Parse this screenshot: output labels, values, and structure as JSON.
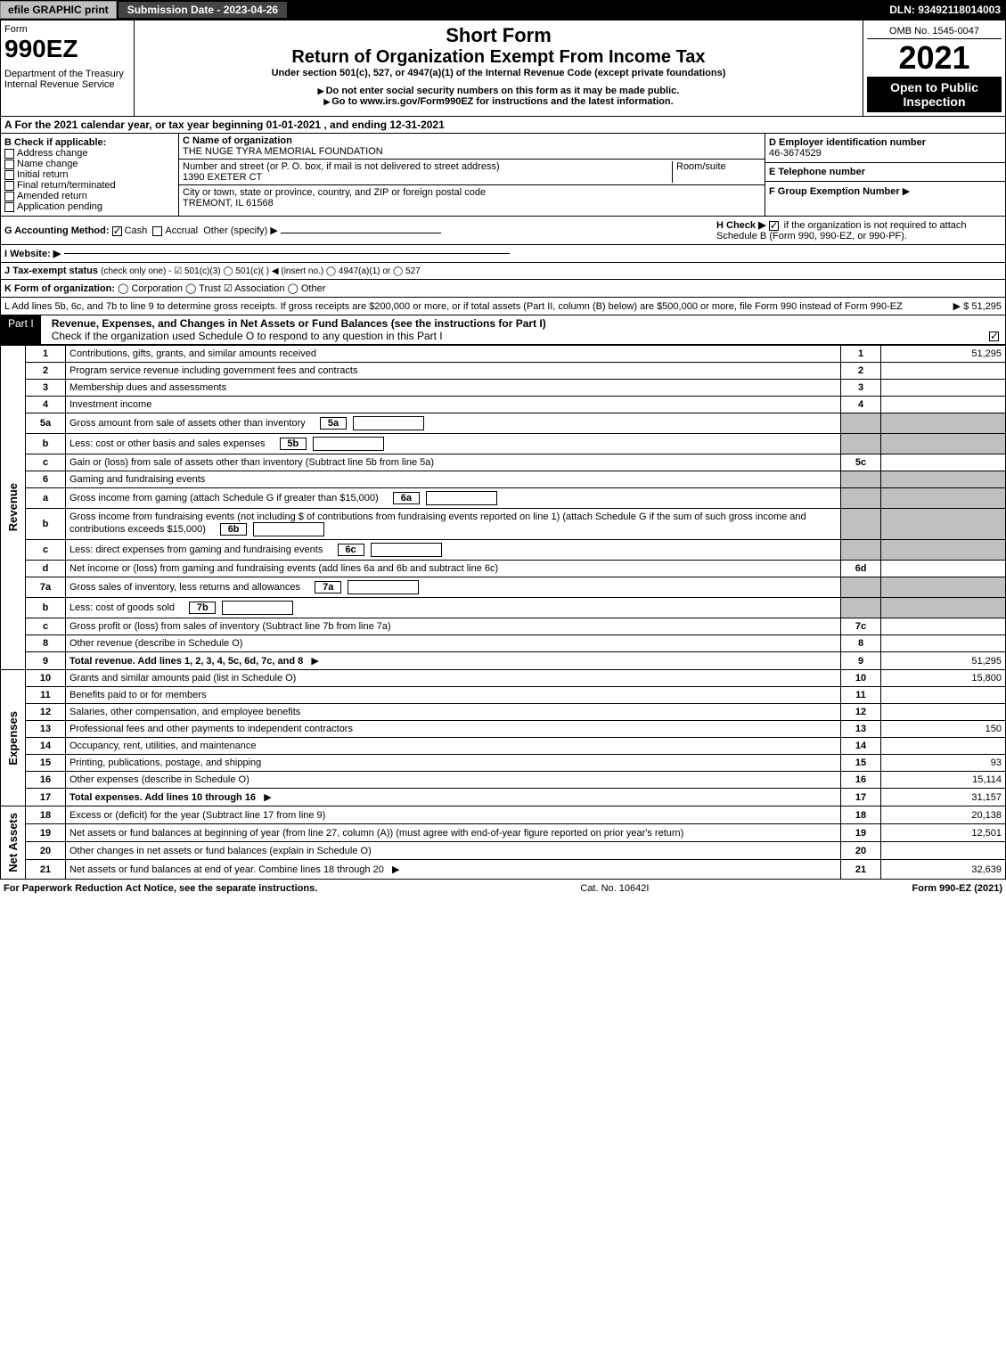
{
  "topbar": {
    "efile": "efile GRAPHIC print",
    "submission": "Submission Date - 2023-04-26",
    "dln": "DLN: 93492118014003"
  },
  "header": {
    "form_word": "Form",
    "form_number": "990EZ",
    "dept": "Department of the Treasury\nInternal Revenue Service",
    "title1": "Short Form",
    "title2": "Return of Organization Exempt From Income Tax",
    "under": "Under section 501(c), 527, or 4947(a)(1) of the Internal Revenue Code (except private foundations)",
    "no_ssn": "Do not enter social security numbers on this form as it may be made public.",
    "goto": "Go to www.irs.gov/Form990EZ for instructions and the latest information.",
    "omb": "OMB No. 1545-0047",
    "year": "2021",
    "open": "Open to Public Inspection"
  },
  "section_a": "A  For the 2021 calendar year, or tax year beginning 01-01-2021 , and ending 12-31-2021",
  "b": {
    "label": "B  Check if applicable:",
    "opts": [
      "Address change",
      "Name change",
      "Initial return",
      "Final return/terminated",
      "Amended return",
      "Application pending"
    ]
  },
  "c": {
    "name_label": "C Name of organization",
    "name": "THE NUGE TYRA MEMORIAL FOUNDATION",
    "street_label": "Number and street (or P. O. box, if mail is not delivered to street address)",
    "room_label": "Room/suite",
    "street": "1390 EXETER CT",
    "city_label": "City or town, state or province, country, and ZIP or foreign postal code",
    "city": "TREMONT, IL  61568"
  },
  "d": {
    "label": "D Employer identification number",
    "value": "46-3674529"
  },
  "e": {
    "label": "E Telephone number",
    "value": ""
  },
  "f": {
    "label": "F Group Exemption Number",
    "arrow": "▶"
  },
  "g": {
    "label": "G Accounting Method:",
    "cash": "Cash",
    "accrual": "Accrual",
    "other": "Other (specify) ▶"
  },
  "h": {
    "label": "H  Check ▶",
    "text": "if the organization is not required to attach Schedule B (Form 990, 990-EZ, or 990-PF)."
  },
  "i": {
    "label": "I Website: ▶",
    "value": ""
  },
  "j": {
    "label": "J Tax-exempt status",
    "rest": "(check only one) -  ☑ 501(c)(3)  ◯ 501(c)(   ) ◀ (insert no.)  ◯ 4947(a)(1) or  ◯ 527"
  },
  "k": {
    "label": "K Form of organization:",
    "opts": "◯ Corporation   ◯ Trust   ☑ Association   ◯ Other"
  },
  "l": {
    "text": "L Add lines 5b, 6c, and 7b to line 9 to determine gross receipts. If gross receipts are $200,000 or more, or if total assets (Part II, column (B) below) are $500,000 or more, file Form 990 instead of Form 990-EZ",
    "value": "▶ $ 51,295"
  },
  "part1": {
    "label": "Part I",
    "title": "Revenue, Expenses, and Changes in Net Assets or Fund Balances (see the instructions for Part I)",
    "check": "Check if the organization used Schedule O to respond to any question in this Part I"
  },
  "sections": {
    "revenue": "Revenue",
    "expenses": "Expenses",
    "netassets": "Net Assets"
  },
  "lines": [
    {
      "n": "1",
      "d": "Contributions, gifts, grants, and similar amounts received",
      "r": "1",
      "v": "51,295"
    },
    {
      "n": "2",
      "d": "Program service revenue including government fees and contracts",
      "r": "2",
      "v": ""
    },
    {
      "n": "3",
      "d": "Membership dues and assessments",
      "r": "3",
      "v": ""
    },
    {
      "n": "4",
      "d": "Investment income",
      "r": "4",
      "v": ""
    },
    {
      "n": "5a",
      "d": "Gross amount from sale of assets other than inventory",
      "sub": "5a",
      "shade": true
    },
    {
      "n": "b",
      "d": "Less: cost or other basis and sales expenses",
      "sub": "5b",
      "shade": true
    },
    {
      "n": "c",
      "d": "Gain or (loss) from sale of assets other than inventory (Subtract line 5b from line 5a)",
      "r": "5c",
      "v": ""
    },
    {
      "n": "6",
      "d": "Gaming and fundraising events",
      "shade": true,
      "noref": true
    },
    {
      "n": "a",
      "d": "Gross income from gaming (attach Schedule G if greater than $15,000)",
      "sub": "6a",
      "shade": true
    },
    {
      "n": "b",
      "d": "Gross income from fundraising events (not including $                    of contributions from fundraising events reported on line 1) (attach Schedule G if the sum of such gross income and contributions exceeds $15,000)",
      "sub": "6b",
      "shade": true
    },
    {
      "n": "c",
      "d": "Less: direct expenses from gaming and fundraising events",
      "sub": "6c",
      "shade": true
    },
    {
      "n": "d",
      "d": "Net income or (loss) from gaming and fundraising events (add lines 6a and 6b and subtract line 6c)",
      "r": "6d",
      "v": ""
    },
    {
      "n": "7a",
      "d": "Gross sales of inventory, less returns and allowances",
      "sub": "7a",
      "shade": true
    },
    {
      "n": "b",
      "d": "Less: cost of goods sold",
      "sub": "7b",
      "shade": true
    },
    {
      "n": "c",
      "d": "Gross profit or (loss) from sales of inventory (Subtract line 7b from line 7a)",
      "r": "7c",
      "v": ""
    },
    {
      "n": "8",
      "d": "Other revenue (describe in Schedule O)",
      "r": "8",
      "v": ""
    },
    {
      "n": "9",
      "d": "Total revenue. Add lines 1, 2, 3, 4, 5c, 6d, 7c, and 8",
      "r": "9",
      "v": "51,295",
      "bold": true,
      "arrow": true
    }
  ],
  "exp_lines": [
    {
      "n": "10",
      "d": "Grants and similar amounts paid (list in Schedule O)",
      "r": "10",
      "v": "15,800"
    },
    {
      "n": "11",
      "d": "Benefits paid to or for members",
      "r": "11",
      "v": ""
    },
    {
      "n": "12",
      "d": "Salaries, other compensation, and employee benefits",
      "r": "12",
      "v": ""
    },
    {
      "n": "13",
      "d": "Professional fees and other payments to independent contractors",
      "r": "13",
      "v": "150"
    },
    {
      "n": "14",
      "d": "Occupancy, rent, utilities, and maintenance",
      "r": "14",
      "v": ""
    },
    {
      "n": "15",
      "d": "Printing, publications, postage, and shipping",
      "r": "15",
      "v": "93"
    },
    {
      "n": "16",
      "d": "Other expenses (describe in Schedule O)",
      "r": "16",
      "v": "15,114"
    },
    {
      "n": "17",
      "d": "Total expenses. Add lines 10 through 16",
      "r": "17",
      "v": "31,157",
      "bold": true,
      "arrow": true
    }
  ],
  "na_lines": [
    {
      "n": "18",
      "d": "Excess or (deficit) for the year (Subtract line 17 from line 9)",
      "r": "18",
      "v": "20,138"
    },
    {
      "n": "19",
      "d": "Net assets or fund balances at beginning of year (from line 27, column (A)) (must agree with end-of-year figure reported on prior year's return)",
      "r": "19",
      "v": "12,501"
    },
    {
      "n": "20",
      "d": "Other changes in net assets or fund balances (explain in Schedule O)",
      "r": "20",
      "v": ""
    },
    {
      "n": "21",
      "d": "Net assets or fund balances at end of year. Combine lines 18 through 20",
      "r": "21",
      "v": "32,639",
      "arrow": true
    }
  ],
  "footer": {
    "left": "For Paperwork Reduction Act Notice, see the separate instructions.",
    "mid": "Cat. No. 10642I",
    "right": "Form 990-EZ (2021)"
  },
  "colors": {
    "black": "#000000",
    "white": "#ffffff",
    "gray_btn": "#c0c0c0",
    "shade": "#c0c0c0",
    "link": "#0000cc"
  }
}
